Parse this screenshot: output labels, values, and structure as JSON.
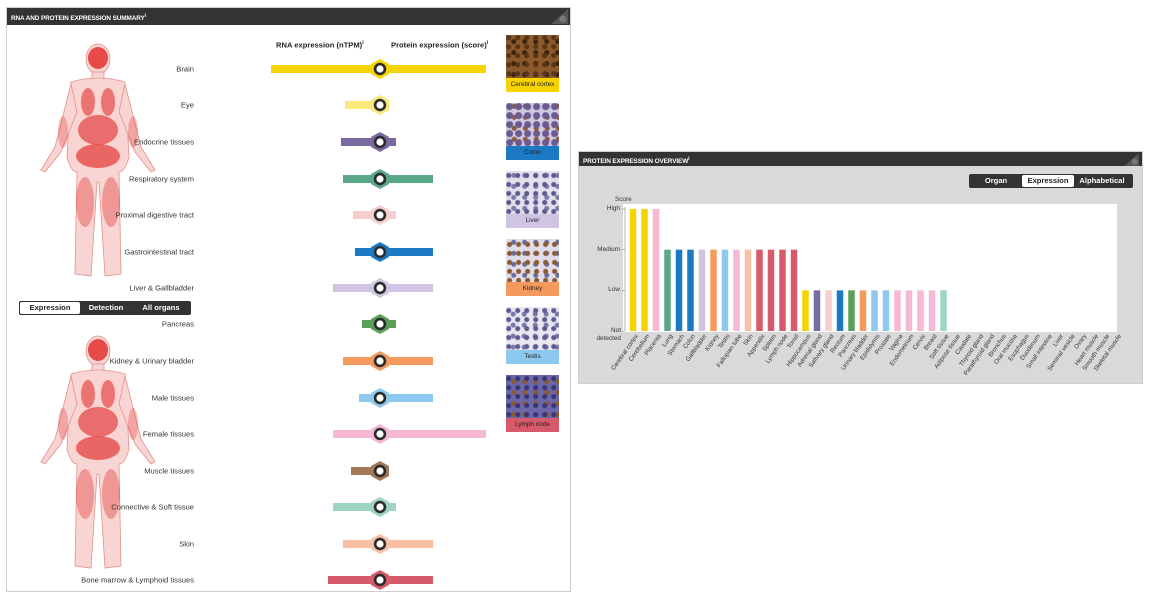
{
  "left_panel": {
    "title": "RNA AND PROTEIN EXPRESSION SUMMARY",
    "title_mark": "i",
    "rna_header": "RNA expression (nTPM)",
    "protein_header": "Protein expression (score)",
    "header_mark": "i",
    "view_buttons": [
      {
        "label": "Expression",
        "active": true
      },
      {
        "label": "Detection",
        "active": false
      },
      {
        "label": "All organs",
        "active": false
      }
    ],
    "organs": [
      {
        "label": "Brain",
        "color": "#f7d400",
        "rna": 1.0,
        "protein": 1.0
      },
      {
        "label": "Eye",
        "color": "#f8e97a",
        "rna": 0.28,
        "protein": 0.0
      },
      {
        "label": "Endocrine tissues",
        "color": "#7b6aa0",
        "rna": 0.32,
        "protein": 0.15
      },
      {
        "label": "Respiratory system",
        "color": "#5aa78a",
        "rna": 0.3,
        "protein": 0.5
      },
      {
        "label": "Proximal digestive tract",
        "color": "#f6cece",
        "rna": 0.2,
        "protein": 0.15
      },
      {
        "label": "Gastrointestinal tract",
        "color": "#1c7ac4",
        "rna": 0.18,
        "protein": 0.5
      },
      {
        "label": "Liver & Gallbladder",
        "color": "#cfc5e2",
        "rna": 0.4,
        "protein": 0.5
      },
      {
        "label": "Pancreas",
        "color": "#5aa05a",
        "rna": 0.12,
        "protein": 0.15
      },
      {
        "label": "Kidney & Urinary bladder",
        "color": "#f49a5e",
        "rna": 0.3,
        "protein": 0.5
      },
      {
        "label": "Male tissues",
        "color": "#8dc8ee",
        "rna": 0.15,
        "protein": 0.5
      },
      {
        "label": "Female tissues",
        "color": "#f6b8d4",
        "rna": 0.4,
        "protein": 1.0
      },
      {
        "label": "Muscle tissues",
        "color": "#a0785a",
        "rna": 0.22,
        "protein": 0.0
      },
      {
        "label": "Connective & Soft tissue",
        "color": "#9fd6c2",
        "rna": 0.4,
        "protein": 0.15
      },
      {
        "label": "Skin",
        "color": "#f8c0a4",
        "rna": 0.3,
        "protein": 0.5
      },
      {
        "label": "Bone marrow & Lymphoid tissues",
        "color": "#d65a6a",
        "rna": 0.45,
        "protein": 0.5
      }
    ],
    "tissue_images": [
      {
        "label": "Cerebral cortex",
        "label_color": "#f7d400",
        "icon": "brown-tissue-image"
      },
      {
        "label": "Colon",
        "label_color": "#1c7ac4",
        "icon": "colon-tissue-image"
      },
      {
        "label": "Liver",
        "label_color": "#cfc5e2",
        "icon": "liver-tissue-image"
      },
      {
        "label": "Kidney",
        "label_color": "#f49a5e",
        "icon": "kidney-tissue-image"
      },
      {
        "label": "Testis",
        "label_color": "#8dc8ee",
        "icon": "testis-tissue-image"
      },
      {
        "label": "Lymph node",
        "label_color": "#d65a6a",
        "icon": "lymph-node-tissue-image"
      }
    ]
  },
  "right_panel": {
    "title": "PROTEIN EXPRESSION OVERVIEW",
    "title_mark": "i",
    "sort_buttons": [
      {
        "label": "Organ",
        "active": false
      },
      {
        "label": "Expression",
        "active": true
      },
      {
        "label": "Alphabetical",
        "active": false
      }
    ]
  },
  "chart_data": {
    "type": "bar",
    "ylabel": "Score",
    "y_ticks": [
      "High",
      "Medium",
      "Low",
      "Not detected"
    ],
    "categories": [
      "Cerebral cortex",
      "Cerebellum",
      "Placenta",
      "Lung",
      "Stomach",
      "Colon",
      "Gallbladder",
      "Kidney",
      "Testis",
      "Fallopian tube",
      "Skin",
      "Appendix",
      "Spleen",
      "Lymph node",
      "Tonsil",
      "Hippocampus",
      "Adrenal gland",
      "Salivary gland",
      "Rectum",
      "Pancreas",
      "Urinary bladder",
      "Epididymis",
      "Prostate",
      "Vagina",
      "Endometrium",
      "Cervix",
      "Breast",
      "Soft tissue",
      "Adipose tissue",
      "Caudate",
      "Thyroid gland",
      "Parathyroid gland",
      "Bronchus",
      "Oral mucosa",
      "Esophagus",
      "Duodenum",
      "Small intestine",
      "Liver",
      "Seminal vesicle",
      "Ovary",
      "Heart muscle",
      "Smooth muscle",
      "Skeletal muscle"
    ],
    "values": [
      3,
      3,
      3,
      2,
      2,
      2,
      2,
      2,
      2,
      2,
      2,
      2,
      2,
      2,
      2,
      1,
      1,
      1,
      1,
      1,
      1,
      1,
      1,
      1,
      1,
      1,
      1,
      1,
      0,
      0,
      0,
      0,
      0,
      0,
      0,
      0,
      0,
      0,
      0,
      0,
      0,
      0,
      0
    ],
    "colors": [
      "#f7d400",
      "#f7d400",
      "#f6b8d4",
      "#5aa78a",
      "#1c7ac4",
      "#1c7ac4",
      "#cfc5e2",
      "#f49a5e",
      "#8dc8ee",
      "#f6b8d4",
      "#f8c0a4",
      "#d65a6a",
      "#d65a6a",
      "#d65a6a",
      "#d65a6a",
      "#f7d400",
      "#7b6aa0",
      "#f6cece",
      "#1c7ac4",
      "#5aa05a",
      "#f49a5e",
      "#8dc8ee",
      "#8dc8ee",
      "#f6b8d4",
      "#f6b8d4",
      "#f6b8d4",
      "#f6b8d4",
      "#9fd6c2",
      "#9fd6c2",
      "#f7d400",
      "#7b6aa0",
      "#7b6aa0",
      "#5aa78a",
      "#f6cece",
      "#f6cece",
      "#1c7ac4",
      "#1c7ac4",
      "#cfc5e2",
      "#8dc8ee",
      "#f6b8d4",
      "#a0785a",
      "#a0785a",
      "#a0785a"
    ],
    "ylim": [
      0,
      3
    ],
    "grid": false,
    "legend": "none"
  }
}
